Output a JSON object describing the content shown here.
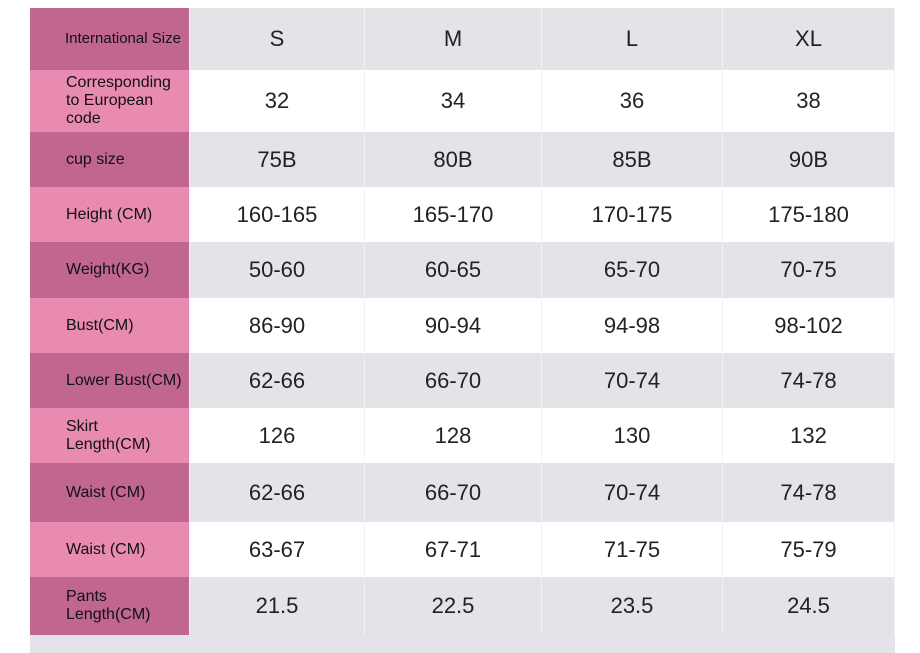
{
  "table": {
    "header": [
      "International Size",
      "S",
      "M",
      "L",
      "XL"
    ],
    "rows": [
      [
        "Corresponding to European code",
        "32",
        "34",
        "36",
        "38"
      ],
      [
        "cup size",
        "75B",
        "80B",
        "85B",
        "90B"
      ],
      [
        "Height (CM)",
        "160-165",
        "165-170",
        "170-175",
        "175-180"
      ],
      [
        "Weight(KG)",
        "50-60",
        "60-65",
        "65-70",
        "70-75"
      ],
      [
        "Bust(CM)",
        "86-90",
        "90-94",
        "94-98",
        "98-102"
      ],
      [
        "Lower Bust(CM)",
        "62-66",
        "66-70",
        "70-74",
        "74-78"
      ],
      [
        "Skirt Length(CM)",
        "126",
        "128",
        "130",
        "132"
      ],
      [
        "Waist (CM)",
        "62-66",
        "66-70",
        "70-74",
        "74-78"
      ],
      [
        "Waist (CM)",
        "63-67",
        "67-71",
        "71-75",
        "75-79"
      ],
      [
        "Pants Length(CM)",
        "21.5",
        "22.5",
        "23.5",
        "24.5"
      ]
    ]
  }
}
